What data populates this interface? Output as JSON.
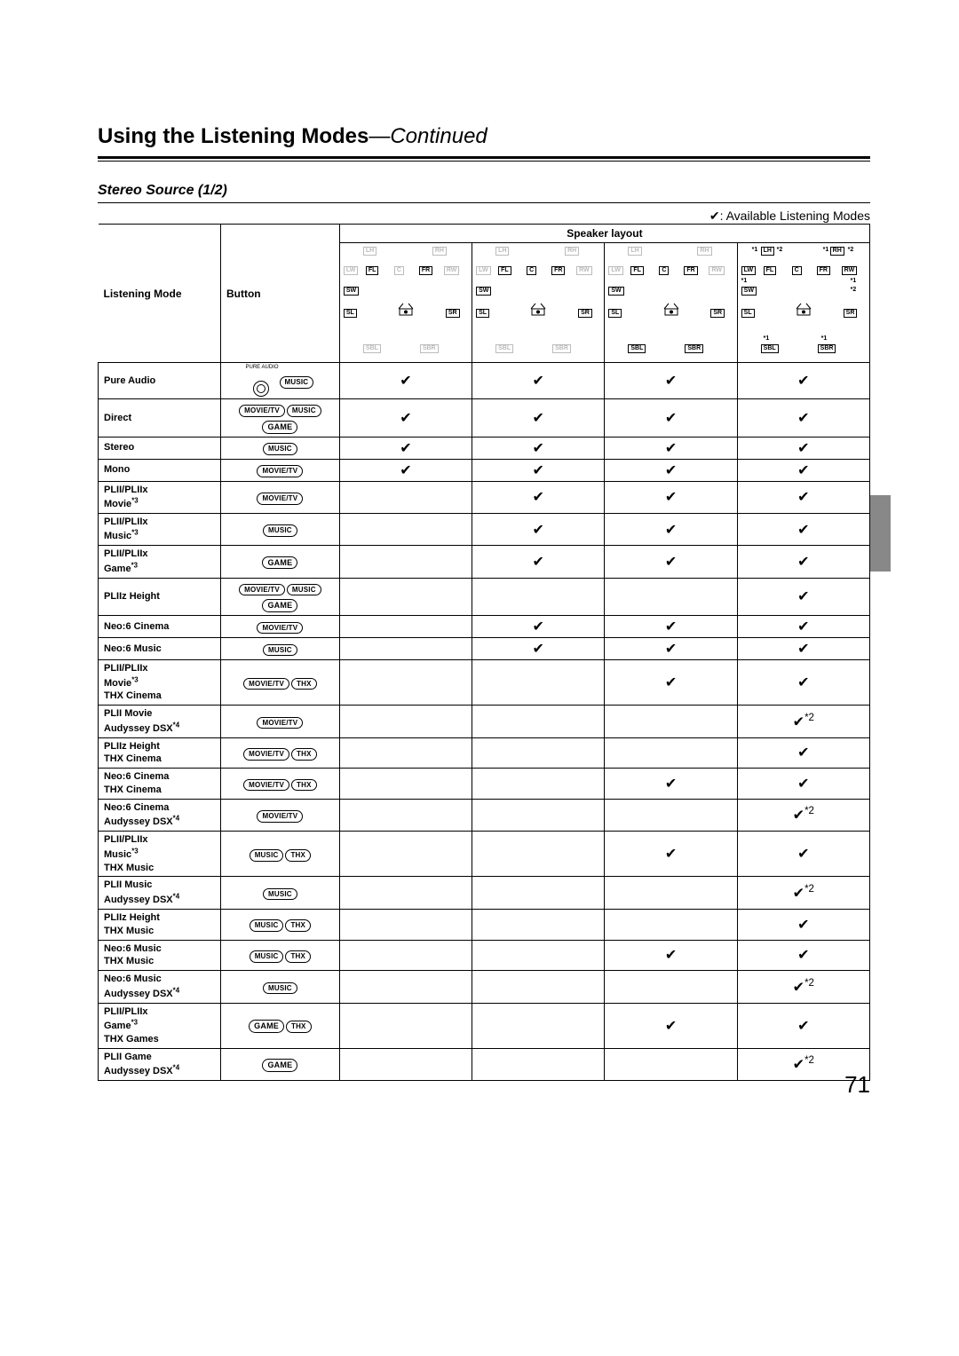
{
  "title_b": "Using the Listening Modes",
  "title_i": "—Continued",
  "subheading": "Stereo Source (1/2)",
  "legend": "✔: Available Listening Modes",
  "pagenum": "71",
  "headers": {
    "listening_mode": "Listening Mode",
    "button": "Button",
    "speaker_layout": "Speaker layout"
  },
  "button_labels": {
    "movietv": "MOVIE/TV",
    "music": "MUSIC",
    "game": "GAME",
    "thx": "THX",
    "pureaudio": "PURE AUDIO"
  },
  "speaker_codes": {
    "LH": "LH",
    "RH": "RH",
    "LW": "LW",
    "FL": "FL",
    "C": "C",
    "FR": "FR",
    "RW": "RW",
    "SW": "SW",
    "SL": "SL",
    "SR": "SR",
    "SBL": "SBL",
    "SBR": "SBR"
  },
  "star1": "*1",
  "star2": "*2",
  "star3": "*3",
  "star4": "*4",
  "check": "✔",
  "check2": "✔*2",
  "rows": [
    {
      "mode_lines": [
        "Pure Audio"
      ],
      "btns": [
        "pureaudio_icon",
        "music"
      ],
      "marks": [
        "c",
        "c",
        "c",
        "c"
      ]
    },
    {
      "mode_lines": [
        "Direct"
      ],
      "btns": [
        "movietv",
        "music",
        "game"
      ],
      "marks": [
        "c",
        "c",
        "c",
        "c"
      ]
    },
    {
      "mode_lines": [
        "Stereo"
      ],
      "btns": [
        "music"
      ],
      "marks": [
        "c",
        "c",
        "c",
        "c"
      ]
    },
    {
      "mode_lines": [
        "Mono"
      ],
      "btns": [
        "movietv"
      ],
      "marks": [
        "c",
        "c",
        "c",
        "c"
      ]
    },
    {
      "mode_lines": [
        "PLII/PLIIx",
        "Movie*3"
      ],
      "btns": [
        "movietv"
      ],
      "marks": [
        "",
        "c",
        "c",
        "c"
      ]
    },
    {
      "mode_lines": [
        "PLII/PLIIx",
        "Music*3"
      ],
      "btns": [
        "music"
      ],
      "marks": [
        "",
        "c",
        "c",
        "c"
      ]
    },
    {
      "mode_lines": [
        "PLII/PLIIx",
        "Game*3"
      ],
      "btns": [
        "game"
      ],
      "marks": [
        "",
        "c",
        "c",
        "c"
      ]
    },
    {
      "mode_lines": [
        "PLIIz Height"
      ],
      "btns": [
        "movietv",
        "music",
        "game"
      ],
      "marks": [
        "",
        "",
        "",
        "c"
      ]
    },
    {
      "mode_lines": [
        "Neo:6 Cinema"
      ],
      "btns": [
        "movietv"
      ],
      "marks": [
        "",
        "c",
        "c",
        "c"
      ]
    },
    {
      "mode_lines": [
        "Neo:6 Music"
      ],
      "btns": [
        "music"
      ],
      "marks": [
        "",
        "c",
        "c",
        "c"
      ]
    },
    {
      "mode_lines": [
        "PLII/PLIIx",
        "Movie*3",
        "THX Cinema"
      ],
      "btns": [
        "movietv",
        "thx"
      ],
      "marks": [
        "",
        "",
        "c",
        "c"
      ]
    },
    {
      "mode_lines": [
        "PLII Movie",
        "Audyssey DSX*4"
      ],
      "btns": [
        "movietv"
      ],
      "marks": [
        "",
        "",
        "",
        "c2"
      ]
    },
    {
      "mode_lines": [
        "PLIIz Height",
        "THX Cinema"
      ],
      "btns": [
        "movietv",
        "thx"
      ],
      "marks": [
        "",
        "",
        "",
        "c"
      ]
    },
    {
      "mode_lines": [
        "Neo:6 Cinema",
        "THX Cinema"
      ],
      "btns": [
        "movietv",
        "thx"
      ],
      "marks": [
        "",
        "",
        "c",
        "c"
      ]
    },
    {
      "mode_lines": [
        "Neo:6 Cinema",
        "Audyssey DSX*4"
      ],
      "btns": [
        "movietv"
      ],
      "marks": [
        "",
        "",
        "",
        "c2"
      ]
    },
    {
      "mode_lines": [
        "PLII/PLIIx",
        "Music*3",
        "THX Music"
      ],
      "btns": [
        "music",
        "thx"
      ],
      "marks": [
        "",
        "",
        "c",
        "c"
      ]
    },
    {
      "mode_lines": [
        "PLII Music",
        "Audyssey DSX*4"
      ],
      "btns": [
        "music"
      ],
      "marks": [
        "",
        "",
        "",
        "c2"
      ]
    },
    {
      "mode_lines": [
        "PLIIz Height",
        "THX Music"
      ],
      "btns": [
        "music",
        "thx"
      ],
      "marks": [
        "",
        "",
        "",
        "c"
      ]
    },
    {
      "mode_lines": [
        "Neo:6 Music",
        "THX Music"
      ],
      "btns": [
        "music",
        "thx"
      ],
      "marks": [
        "",
        "",
        "c",
        "c"
      ]
    },
    {
      "mode_lines": [
        "Neo:6 Music",
        "Audyssey DSX*4"
      ],
      "btns": [
        "music"
      ],
      "marks": [
        "",
        "",
        "",
        "c2"
      ]
    },
    {
      "mode_lines": [
        "PLII/PLIIx",
        "Game*3",
        "THX Games"
      ],
      "btns": [
        "game",
        "thx"
      ],
      "marks": [
        "",
        "",
        "c",
        "c"
      ]
    },
    {
      "mode_lines": [
        "PLII Game",
        "Audyssey DSX*4"
      ],
      "btns": [
        "game"
      ],
      "marks": [
        "",
        "",
        "",
        "c2"
      ]
    }
  ],
  "layouts": [
    {
      "top_dim": true,
      "lw_rw_dim": true,
      "c_dim": true,
      "sbl_sbr_dim": true,
      "notes": false
    },
    {
      "top_dim": true,
      "lw_rw_dim": true,
      "c_dim": false,
      "sbl_sbr_dim": true,
      "notes": false
    },
    {
      "top_dim": true,
      "lw_rw_dim": true,
      "c_dim": false,
      "sbl_sbr_dim": false,
      "notes": false
    },
    {
      "top_dim": false,
      "lw_rw_dim": false,
      "c_dim": false,
      "sbl_sbr_dim": false,
      "notes": true
    }
  ]
}
